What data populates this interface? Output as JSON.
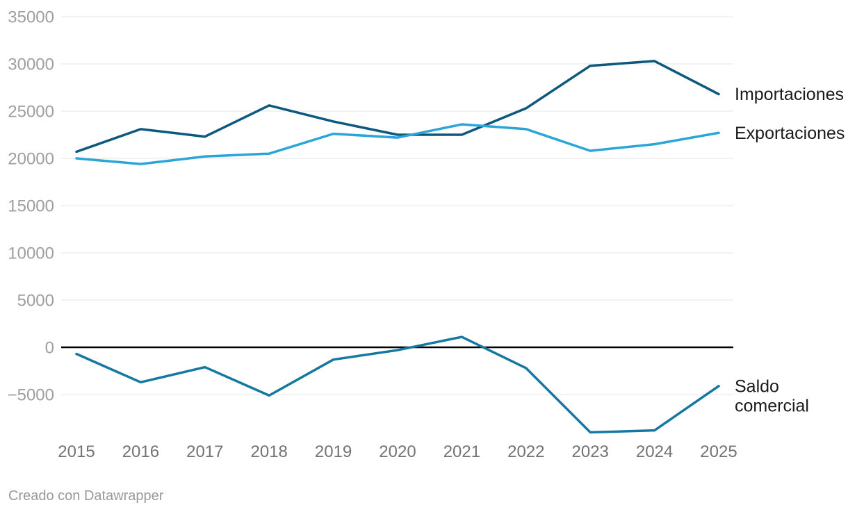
{
  "chart_data": {
    "type": "line",
    "x": [
      2015,
      2016,
      2017,
      2018,
      2019,
      2020,
      2021,
      2022,
      2023,
      2024,
      2025
    ],
    "series": [
      {
        "name": "Importaciones",
        "color": "#0d587e",
        "label_lines": [
          "Importaciones"
        ],
        "values": [
          20700,
          23100,
          22300,
          25600,
          23900,
          22500,
          22500,
          25300,
          29800,
          30300,
          26800
        ]
      },
      {
        "name": "Exportaciones",
        "color": "#2aa5d8",
        "label_lines": [
          "Exportaciones"
        ],
        "values": [
          20000,
          19400,
          20200,
          20500,
          22600,
          22200,
          23600,
          23100,
          20800,
          21500,
          22700
        ]
      },
      {
        "name": "Saldo comercial",
        "color": "#1478a0",
        "label_lines": [
          "Saldo",
          "comercial"
        ],
        "values": [
          -700,
          -3700,
          -2100,
          -5100,
          -1300,
          -300,
          1100,
          -2200,
          -9000,
          -8800,
          -4100
        ]
      }
    ],
    "yticks": [
      35000,
      30000,
      25000,
      20000,
      15000,
      10000,
      5000,
      0,
      -5000
    ],
    "ylim": [
      -9500,
      35000
    ],
    "grid": true,
    "zero_line": true,
    "legend_position": "right-direct-labels",
    "title": "",
    "xlabel": "",
    "ylabel": ""
  },
  "colors": {
    "background": "#ffffff",
    "gridline": "#e6e6e6",
    "zero_line": "#000000",
    "y_label": "#9e9e9e",
    "x_label": "#737373",
    "series_label": "#1a1a1a",
    "footer": "#999999"
  },
  "footer": {
    "credit": "Creado con Datawrapper"
  }
}
